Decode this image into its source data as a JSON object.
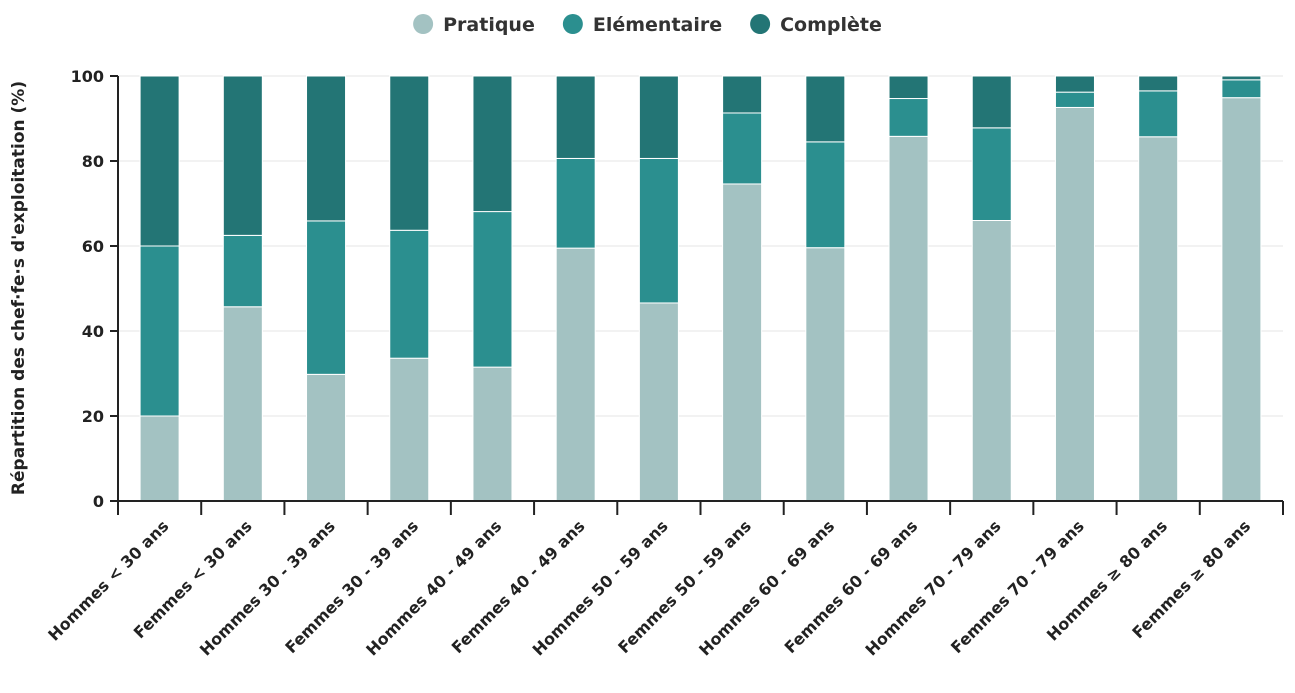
{
  "chart_data": {
    "type": "bar",
    "stacked": true,
    "title": "",
    "xlabel": "",
    "ylabel": "Répartition des chef·fe·s d'exploitation (%)",
    "ylim": [
      0,
      100
    ],
    "yticks": [
      0,
      20,
      40,
      60,
      80,
      100
    ],
    "grid": true,
    "legend_position": "top",
    "categories": [
      "Hommes < 30 ans",
      "Femmes < 30 ans",
      "Hommes 30 - 39 ans",
      "Femmes 30 - 39 ans",
      "Hommes 40 - 49 ans",
      "Femmes 40 - 49 ans",
      "Hommes 50 - 59 ans",
      "Femmes 50 - 59 ans",
      "Hommes 60 - 69 ans",
      "Femmes 60 - 69 ans",
      "Hommes 70 - 79 ans",
      "Femmes 70 - 79 ans",
      "Hommes ≥ 80 ans",
      "Femmes ≥ 80 ans"
    ],
    "series": [
      {
        "name": "Pratique",
        "color": "#a3c2c2",
        "values": [
          20,
          45.7,
          29.8,
          33.6,
          31.5,
          59.5,
          46.6,
          74.6,
          59.6,
          85.8,
          66,
          92.6,
          85.7,
          94.9
        ]
      },
      {
        "name": "Elémentaire",
        "color": "#2b8f8f",
        "values": [
          40,
          16.8,
          36.1,
          30.1,
          36.6,
          21.1,
          34,
          16.7,
          24.9,
          8.9,
          21.8,
          3.6,
          10.8,
          4.2
        ]
      },
      {
        "name": "Complète",
        "color": "#237575",
        "values": [
          40,
          37.5,
          34.1,
          36.3,
          31.9,
          19.4,
          19.4,
          8.7,
          15.5,
          5.3,
          12.2,
          3.8,
          3.5,
          0.9
        ]
      }
    ]
  }
}
